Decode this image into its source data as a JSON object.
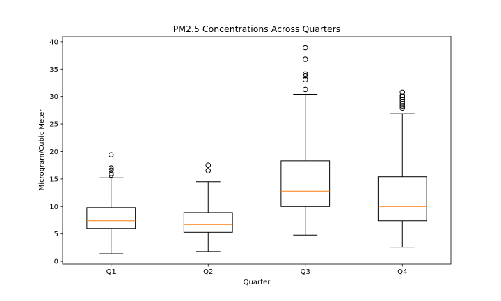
{
  "chart_data": {
    "type": "boxplot",
    "title": "PM2.5 Concentrations Across Quarters",
    "xlabel": "Quarter",
    "ylabel": "Microgram/Cubic Meter",
    "ylim": [
      -0.5,
      41
    ],
    "yticks": [
      0,
      5,
      10,
      15,
      20,
      25,
      30,
      35,
      40
    ],
    "grid": false,
    "categories": [
      "Q1",
      "Q2",
      "Q3",
      "Q4"
    ],
    "boxes": [
      {
        "category": "Q1",
        "whisker_low": 1.4,
        "q1": 6.0,
        "median": 7.4,
        "q3": 9.8,
        "whisker_high": 15.2,
        "outliers": [
          15.7,
          16.0,
          16.6,
          17.0,
          19.4
        ]
      },
      {
        "category": "Q2",
        "whisker_low": 1.8,
        "q1": 5.3,
        "median": 6.7,
        "q3": 8.9,
        "whisker_high": 14.5,
        "outliers": [
          16.5,
          17.5
        ]
      },
      {
        "category": "Q3",
        "whisker_low": 4.8,
        "q1": 10.0,
        "median": 12.8,
        "q3": 18.3,
        "whisker_high": 30.4,
        "outliers": [
          31.3,
          33.1,
          33.8,
          34.1,
          36.8,
          38.9
        ]
      },
      {
        "category": "Q4",
        "whisker_low": 2.6,
        "q1": 7.4,
        "median": 10.0,
        "q3": 15.4,
        "whisker_high": 26.9,
        "outliers": [
          27.9,
          28.3,
          28.7,
          29.1,
          29.5,
          29.9,
          30.2,
          30.8
        ]
      }
    ],
    "colors": {
      "box": "#000000",
      "median": "#ff7f0e",
      "outlier": "#000000",
      "background": "#ffffff"
    }
  }
}
